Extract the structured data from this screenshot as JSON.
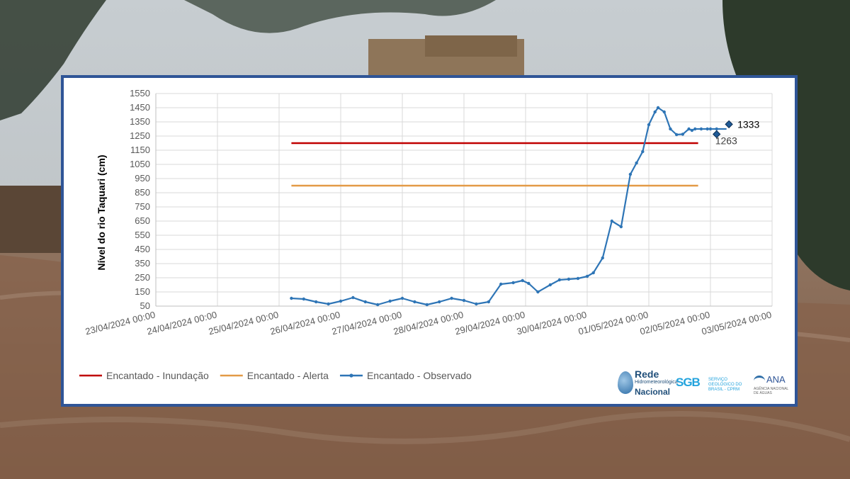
{
  "background": {
    "description_colors": {
      "sky": "#c9cfd3",
      "river": "#8b6a55",
      "trees": "#2f3a2e"
    }
  },
  "chart_data": {
    "type": "line",
    "title": "",
    "xlabel": "",
    "ylabel": "Nível do rio Taquari (cm)",
    "ylim": [
      50,
      1550
    ],
    "yticks": [
      50,
      150,
      250,
      350,
      450,
      550,
      650,
      750,
      850,
      950,
      1050,
      1150,
      1250,
      1350,
      1450,
      1550
    ],
    "x_tick_labels": [
      "23/04/2024 00:00",
      "24/04/2024 00:00",
      "25/04/2024 00:00",
      "26/04/2024 00:00",
      "27/04/2024 00:00",
      "28/04/2024 00:00",
      "29/04/2024 00:00",
      "30/04/2024 00:00",
      "01/05/2024 00:00",
      "02/05/2024 00:00",
      "03/05/2024 00:00"
    ],
    "xlim_days": [
      0,
      10
    ],
    "grid": true,
    "legend_placement": "bottom-left",
    "series": [
      {
        "name": "Encantado - Inundação",
        "color": "#c00000",
        "x": [
          2.2,
          8.8
        ],
        "values": [
          1200,
          1200
        ]
      },
      {
        "name": "Encantado - Alerta",
        "color": "#e39a46",
        "x": [
          2.2,
          8.8
        ],
        "values": [
          900,
          900
        ]
      },
      {
        "name": "Encantado - Observado",
        "color": "#2e75b6",
        "marker": "dot",
        "x": [
          2.2,
          2.4,
          2.6,
          2.8,
          3.0,
          3.2,
          3.4,
          3.6,
          3.8,
          4.0,
          4.2,
          4.4,
          4.6,
          4.8,
          5.0,
          5.2,
          5.4,
          5.6,
          5.8,
          5.95,
          6.05,
          6.2,
          6.4,
          6.55,
          6.7,
          6.85,
          7.0,
          7.1,
          7.25,
          7.4,
          7.55,
          7.7,
          7.8,
          7.9,
          8.0,
          8.1,
          8.15,
          8.25,
          8.35,
          8.45,
          8.55,
          8.65,
          8.7,
          8.75,
          8.85,
          8.95,
          9.0,
          9.1,
          9.2,
          9.25
        ],
        "values": [
          105,
          100,
          80,
          65,
          85,
          110,
          80,
          60,
          85,
          105,
          80,
          60,
          80,
          105,
          90,
          65,
          80,
          205,
          215,
          230,
          210,
          150,
          200,
          235,
          240,
          245,
          260,
          285,
          390,
          650,
          610,
          980,
          1060,
          1140,
          1330,
          1420,
          1450,
          1420,
          1300,
          1260,
          1263,
          1300,
          1290,
          1300,
          1300,
          1300,
          1300,
          1300,
          1300,
          1300
        ]
      }
    ],
    "annotations": [
      {
        "label": "1263",
        "x": 9.1,
        "y": 1263
      },
      {
        "label": "1333",
        "x": 9.3,
        "y": 1333
      }
    ]
  },
  "logos": {
    "rede_title": "Rede",
    "rede_sub": "Hidrometeorológica",
    "rede_name": "Nacional",
    "sgb_mark": "SGB",
    "sgb_text": "SERVIÇO GEOLÓGICO DO BRASIL - CPRM",
    "ana_name": "ANA",
    "ana_sub": "AGÊNCIA NACIONAL DE ÁGUAS"
  }
}
